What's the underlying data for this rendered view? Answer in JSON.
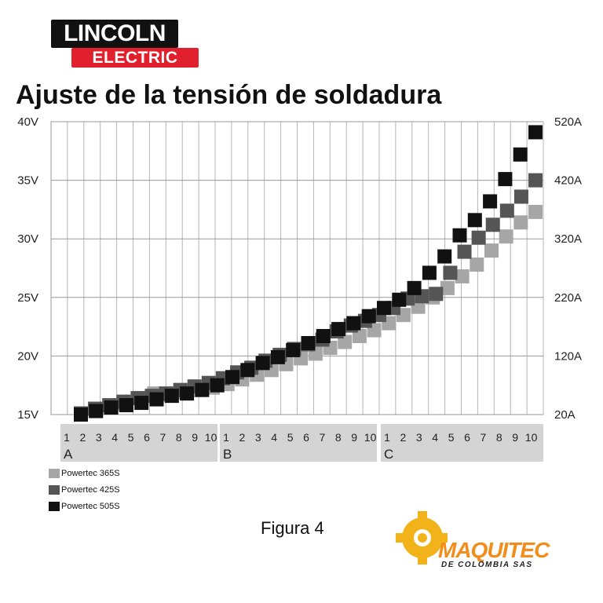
{
  "logo": {
    "line1": "LINCOLN",
    "line2": "ELECTRIC"
  },
  "title": "Ajuste de la tensión de soldadura",
  "chart_data": {
    "type": "scatter",
    "title": "Ajuste de la tensión de soldadura",
    "y_left": {
      "range": [
        15,
        40
      ],
      "ticks": [
        "15V",
        "20V",
        "25V",
        "30V",
        "35V",
        "40V"
      ]
    },
    "y_right": {
      "range": [
        20,
        520
      ],
      "ticks": [
        "20A",
        "120A",
        "220A",
        "320A",
        "420A",
        "520A"
      ]
    },
    "x_ticks": [
      "1",
      "2",
      "3",
      "4",
      "5",
      "6",
      "7",
      "8",
      "9",
      "10",
      "1",
      "2",
      "3",
      "4",
      "5",
      "6",
      "7",
      "8",
      "9",
      "10",
      "1",
      "2",
      "3",
      "4",
      "5",
      "6",
      "7",
      "8",
      "9",
      "10"
    ],
    "x_groups": [
      "A",
      "B",
      "C"
    ],
    "grid": true,
    "series": [
      {
        "name": "Powertec 365S",
        "color": "#a6a6a6",
        "start": 2,
        "values": [
          15.0,
          15.3,
          15.6,
          15.9,
          16.4,
          16.8,
          16.7,
          16.9,
          17.1,
          17.3,
          17.6,
          18.0,
          18.4,
          18.8,
          19.3,
          19.8,
          20.2,
          20.7,
          21.2,
          21.7,
          22.2,
          22.8,
          23.5,
          24.2,
          25.0,
          25.8,
          26.8,
          27.8,
          29.0,
          30.2,
          31.4,
          32.3
        ]
      },
      {
        "name": "Powertec 425S",
        "color": "#555555",
        "start": 2,
        "values": [
          15.1,
          15.5,
          15.8,
          16.1,
          16.4,
          16.6,
          16.8,
          17.1,
          17.4,
          17.7,
          18.1,
          18.6,
          19.0,
          19.6,
          20.1,
          20.6,
          21.0,
          21.4,
          22.1,
          22.6,
          23.0,
          23.5,
          24.1,
          24.9,
          25.1,
          25.3,
          27.1,
          28.9,
          30.1,
          31.2,
          32.4,
          33.6,
          35.0
        ]
      },
      {
        "name": "Powertec 505S",
        "color": "#111111",
        "start": 2,
        "values": [
          15.0,
          15.3,
          15.6,
          15.8,
          16.0,
          16.3,
          16.6,
          16.8,
          17.1,
          17.5,
          18.2,
          18.8,
          19.4,
          19.9,
          20.5,
          21.1,
          21.7,
          22.3,
          22.8,
          23.4,
          24.1,
          24.8,
          25.8,
          27.1,
          28.5,
          30.3,
          31.6,
          33.2,
          35.1,
          37.2,
          39.1
        ]
      }
    ]
  },
  "legend": [
    {
      "label": "Powertec 365S",
      "color": "#a6a6a6"
    },
    {
      "label": "Powertec 425S",
      "color": "#555555"
    },
    {
      "label": "Powertec 505S",
      "color": "#111111"
    }
  ],
  "caption": "Figura 4",
  "watermark": {
    "name": "MAQUITEC",
    "sub": "DE COLOMBIA SAS",
    "color": "#f28c1a"
  }
}
